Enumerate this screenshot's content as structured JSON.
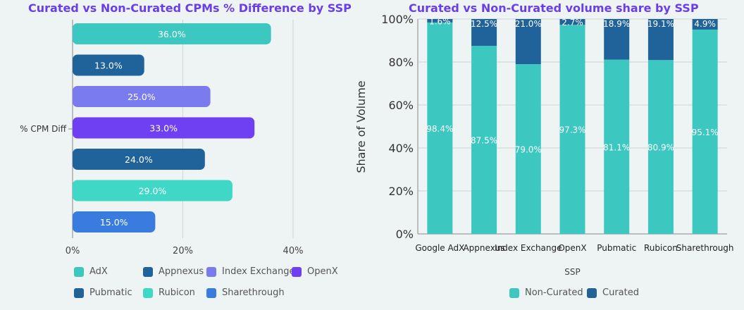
{
  "chart_data": [
    {
      "type": "bar",
      "orientation": "horizontal",
      "title": "Curated vs Non-Curated CPMs % Difference by SSP",
      "categories": [
        "% CPM Diff"
      ],
      "x_ticks": [
        "0%",
        "20%",
        "40%"
      ],
      "xlim": [
        0,
        48
      ],
      "grid": true,
      "legend_position": "bottom",
      "series": [
        {
          "name": "AdX",
          "value": 36.0,
          "label": "36.0%",
          "color": "#3cc8c0"
        },
        {
          "name": "Appnexus",
          "value": 13.0,
          "label": "13.0%",
          "color": "#1f639a"
        },
        {
          "name": "Index Exchange",
          "value": 25.0,
          "label": "25.0%",
          "color": "#7b7bf0"
        },
        {
          "name": "OpenX",
          "value": 33.0,
          "label": "33.0%",
          "color": "#6f3ff2"
        },
        {
          "name": "Pubmatic",
          "value": 24.0,
          "label": "24.0%",
          "color": "#1f639a"
        },
        {
          "name": "Rubicon",
          "value": 29.0,
          "label": "29.0%",
          "color": "#3fd8c6"
        },
        {
          "name": "Sharethrough",
          "value": 15.0,
          "label": "15.0%",
          "color": "#3a7be0"
        }
      ]
    },
    {
      "type": "bar",
      "stacked": true,
      "title": "Curated vs Non-Curated volume share by SSP",
      "xlabel": "SSP",
      "ylabel": "Share of Volume",
      "ylim": [
        0,
        100
      ],
      "y_ticks": [
        "0%",
        "20%",
        "40%",
        "60%",
        "80%",
        "100%"
      ],
      "grid": true,
      "legend_position": "bottom",
      "categories": [
        "Google AdX",
        "Appnexus",
        "Index Exchange",
        "OpenX",
        "Pubmatic",
        "Rubicon",
        "Sharethrough"
      ],
      "series": [
        {
          "name": "Non-Curated",
          "color": "#3cc8c0",
          "values": [
            98.4,
            87.5,
            79.0,
            97.3,
            81.1,
            80.9,
            95.1
          ],
          "labels": [
            "98.4%",
            "87.5%",
            "79.0%",
            "97.3%",
            "81.1%",
            "80.9%",
            "95.1%"
          ]
        },
        {
          "name": "Curated",
          "color": "#1f639a",
          "values": [
            1.6,
            12.5,
            21.0,
            2.7,
            18.9,
            19.1,
            4.9
          ],
          "labels": [
            "1.6%",
            "12.5%",
            "21.0%",
            "2.7%",
            "18.9%",
            "19.1%",
            "4.9%"
          ]
        }
      ]
    }
  ]
}
